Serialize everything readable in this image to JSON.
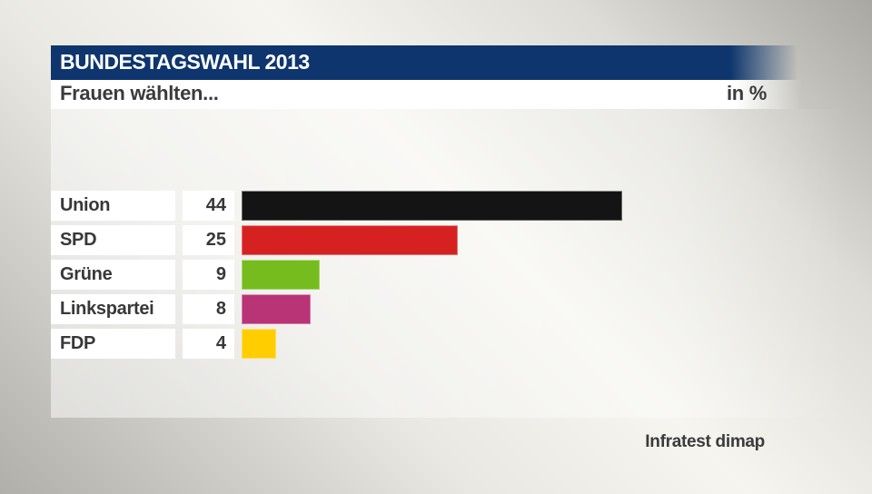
{
  "header": {
    "title": "BUNDESTAGSWAHL 2013",
    "subtitle": "Frauen wählten...",
    "unit_label": "in %"
  },
  "source": "Infratest dimap",
  "colors": {
    "header_bar_bg": "#0e356d",
    "header_title_text": "#ffffff",
    "subtitle_bar_bg": "#ffffff",
    "dark_text": "#3b3b3b",
    "box_bg": "#ffffff"
  },
  "chart_data": {
    "type": "bar",
    "orientation": "horizontal",
    "title": "Frauen wählten...",
    "unit": "%",
    "categories": [
      "Union",
      "SPD",
      "Grüne",
      "Linkspartei",
      "FDP"
    ],
    "values": [
      44,
      25,
      9,
      8,
      4
    ],
    "bar_colors": [
      "#141414",
      "#d52221",
      "#76bc1e",
      "#b93377",
      "#ffcd00"
    ],
    "xlim": [
      0,
      46
    ],
    "grid": false,
    "legend": false,
    "value_labels_position": "left-boxes",
    "source": "Infratest dimap"
  }
}
